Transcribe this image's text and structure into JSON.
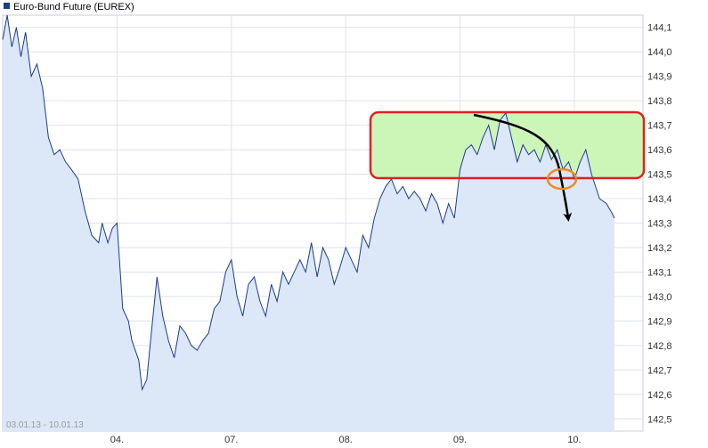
{
  "colors": {
    "line": "#1a3d8a",
    "area": "#dce7f8",
    "grid": "#dde3ec",
    "legend_square": "#1a3d8a",
    "highlight_fill": "#ccf5b8",
    "highlight_border": "#e02020",
    "circle": "#f08a1c",
    "arrow": "#000000"
  },
  "annotations": {
    "box": "rounded-rectangle",
    "arrow": "curved-arrow",
    "circle": "ellipse"
  },
  "chart_data": {
    "type": "area",
    "title": "Euro-Bund Future (EUREX)",
    "date_range": "03.01.13 - 10.01.13",
    "legend_placement": "top-left",
    "grid": true,
    "x_ticks": [
      "04.",
      "07.",
      "08.",
      "09.",
      "10."
    ],
    "y_ticks": [
      "142,5",
      "142,6",
      "142,7",
      "142,8",
      "142,9",
      "143,0",
      "143,1",
      "143,2",
      "143,3",
      "143,4",
      "143,5",
      "143,6",
      "143,7",
      "143,8",
      "143,9",
      "144,0",
      "144,1"
    ],
    "ylim": [
      142.45,
      144.15
    ],
    "x_tick_positions": [
      1,
      2,
      3,
      4,
      5
    ],
    "xlim": [
      0,
      5.6
    ],
    "series": [
      {
        "name": "Euro-Bund Future (EUREX)",
        "x": [
          0.0,
          0.04,
          0.08,
          0.12,
          0.16,
          0.2,
          0.25,
          0.3,
          0.35,
          0.4,
          0.45,
          0.5,
          0.55,
          0.6,
          0.66,
          0.72,
          0.78,
          0.84,
          0.87,
          0.92,
          0.96,
          1.0,
          1.05,
          1.1,
          1.13,
          1.16,
          1.19,
          1.22,
          1.26,
          1.3,
          1.35,
          1.4,
          1.45,
          1.5,
          1.55,
          1.6,
          1.65,
          1.7,
          1.75,
          1.8,
          1.85,
          1.9,
          1.95,
          2.0,
          2.05,
          2.1,
          2.15,
          2.2,
          2.25,
          2.3,
          2.35,
          2.4,
          2.45,
          2.5,
          2.55,
          2.6,
          2.65,
          2.7,
          2.75,
          2.8,
          2.85,
          2.9,
          2.95,
          3.0,
          3.05,
          3.1,
          3.15,
          3.2,
          3.25,
          3.3,
          3.35,
          3.4,
          3.45,
          3.5,
          3.55,
          3.6,
          3.65,
          3.7,
          3.75,
          3.8,
          3.85,
          3.9,
          3.95,
          4.0,
          4.05,
          4.1,
          4.15,
          4.2,
          4.25,
          4.3,
          4.35,
          4.4,
          4.45,
          4.5,
          4.55,
          4.6,
          4.65,
          4.7,
          4.75,
          4.8,
          4.85,
          4.9,
          4.95,
          5.0,
          5.05,
          5.1,
          5.15,
          5.22,
          5.28,
          5.33,
          5.35
        ],
        "values": [
          144.05,
          144.15,
          144.02,
          144.1,
          143.98,
          144.08,
          143.9,
          143.95,
          143.85,
          143.65,
          143.58,
          143.6,
          143.55,
          143.52,
          143.48,
          143.35,
          143.25,
          143.22,
          143.3,
          143.22,
          143.28,
          143.3,
          142.95,
          142.9,
          142.82,
          142.78,
          142.74,
          142.62,
          142.66,
          142.85,
          143.08,
          142.92,
          142.82,
          142.75,
          142.88,
          142.85,
          142.8,
          142.78,
          142.82,
          142.85,
          142.95,
          142.98,
          143.1,
          143.15,
          143.0,
          142.92,
          143.05,
          143.08,
          142.98,
          142.92,
          143.05,
          142.98,
          143.1,
          143.05,
          143.1,
          143.15,
          143.1,
          143.22,
          143.08,
          143.2,
          143.15,
          143.05,
          143.12,
          143.2,
          143.15,
          143.1,
          143.25,
          143.2,
          143.32,
          143.4,
          143.45,
          143.48,
          143.42,
          143.45,
          143.4,
          143.43,
          143.4,
          143.35,
          143.42,
          143.38,
          143.3,
          143.38,
          143.32,
          143.52,
          143.6,
          143.62,
          143.58,
          143.65,
          143.7,
          143.6,
          143.72,
          143.75,
          143.65,
          143.55,
          143.62,
          143.58,
          143.6,
          143.55,
          143.62,
          143.56,
          143.6,
          143.52,
          143.55,
          143.48,
          143.55,
          143.6,
          143.5,
          143.4,
          143.38,
          143.34,
          143.32
        ]
      }
    ]
  }
}
